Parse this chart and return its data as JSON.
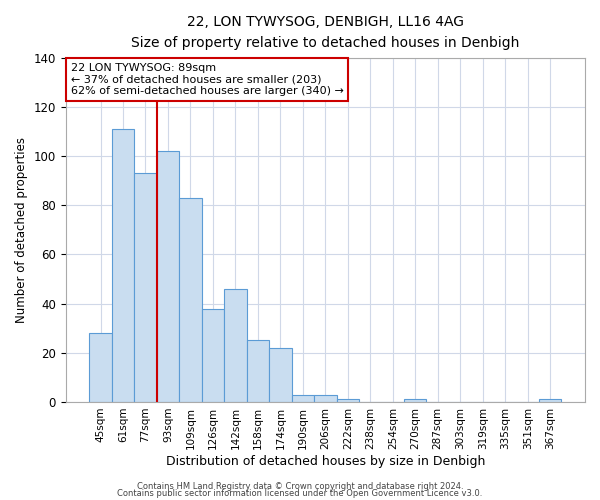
{
  "title": "22, LON TYWYSOG, DENBIGH, LL16 4AG",
  "subtitle": "Size of property relative to detached houses in Denbigh",
  "xlabel": "Distribution of detached houses by size in Denbigh",
  "ylabel": "Number of detached properties",
  "bar_labels": [
    "45sqm",
    "61sqm",
    "77sqm",
    "93sqm",
    "109sqm",
    "126sqm",
    "142sqm",
    "158sqm",
    "174sqm",
    "190sqm",
    "206sqm",
    "222sqm",
    "238sqm",
    "254sqm",
    "270sqm",
    "287sqm",
    "303sqm",
    "319sqm",
    "335sqm",
    "351sqm",
    "367sqm"
  ],
  "bar_values": [
    28,
    111,
    93,
    102,
    83,
    38,
    46,
    25,
    22,
    3,
    3,
    1,
    0,
    0,
    1,
    0,
    0,
    0,
    0,
    0,
    1
  ],
  "bar_color": "#c9ddf0",
  "bar_edge_color": "#5b9bd5",
  "ylim": [
    0,
    140
  ],
  "yticks": [
    0,
    20,
    40,
    60,
    80,
    100,
    120,
    140
  ],
  "vline_color": "#cc0000",
  "annotation_title": "22 LON TYWYSOG: 89sqm",
  "annotation_line1": "← 37% of detached houses are smaller (203)",
  "annotation_line2": "62% of semi-detached houses are larger (340) →",
  "annotation_box_color": "#cc0000",
  "footer_line1": "Contains HM Land Registry data © Crown copyright and database right 2024.",
  "footer_line2": "Contains public sector information licensed under the Open Government Licence v3.0.",
  "bg_color": "#ffffff",
  "grid_color": "#d0d8e8"
}
